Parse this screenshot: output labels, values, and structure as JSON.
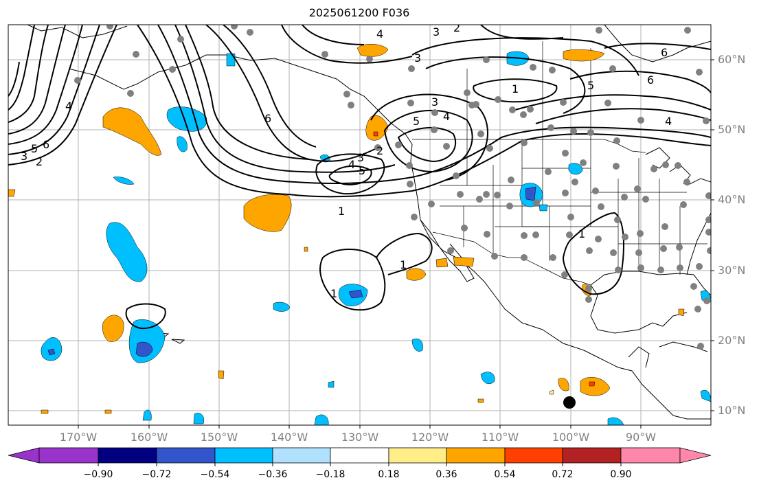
{
  "title": "2025061200 F036",
  "lat_labels": [
    "60°N",
    "50°N",
    "40°N",
    "30°N",
    "20°N",
    "10°N"
  ],
  "lon_labels": [
    "170°W",
    "160°W",
    "150°W",
    "140°W",
    "130°W",
    "120°W",
    "110°W",
    "100°W",
    "90°W"
  ],
  "colorbar": {
    "ticks": [
      "−0.90",
      "−0.72",
      "−0.54",
      "−0.36",
      "−0.18",
      "0.18",
      "0.36",
      "0.54",
      "0.72",
      "0.90"
    ],
    "colors": [
      "#9933cc",
      "#000080",
      "#3355cc",
      "#00bfff",
      "#b0e2ff",
      "#ffffff",
      "#ffee88",
      "#ffa500",
      "#ff4000",
      "#b22222",
      "#ff88aa"
    ]
  },
  "contour_labels": [
    "1",
    "1",
    "1",
    "1",
    "1",
    "2",
    "2",
    "2",
    "3",
    "3",
    "3",
    "3",
    "3",
    "4",
    "4",
    "4",
    "4",
    "4",
    "5",
    "5",
    "5",
    "5",
    "6",
    "6",
    "6",
    "6"
  ],
  "map": {
    "projection": "equirectangular",
    "extent_lon": [
      -180,
      -80
    ],
    "extent_lat": [
      8,
      65
    ],
    "grid": true
  }
}
